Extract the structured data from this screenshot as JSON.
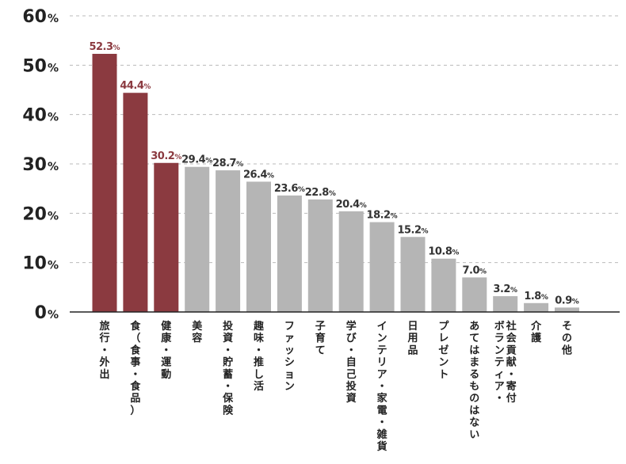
{
  "chart_data": {
    "type": "bar",
    "title": "",
    "xlabel": "",
    "ylabel": "",
    "ylim": [
      0,
      60
    ],
    "yticks": [
      0,
      10,
      20,
      30,
      40,
      50,
      60
    ],
    "ytick_labels": [
      "0%",
      "10%",
      "20%",
      "30%",
      "40%",
      "50%",
      "60%"
    ],
    "grid": true,
    "legend": "none",
    "categories": [
      "旅行・外出",
      "食（食事・食品）",
      "健康・運動",
      "美容",
      "投資・貯蓄・保険",
      "趣味・推し活",
      "ファッション",
      "子育て",
      "学び・自己投資",
      "インテリア・家電・雑貨",
      "日用品",
      "プレゼント",
      "あてはまるものはない",
      "ボランティア・社会貢献・寄付",
      "介護",
      "その他"
    ],
    "values": [
      52.3,
      44.4,
      30.2,
      29.4,
      28.7,
      26.4,
      23.6,
      22.8,
      20.4,
      18.2,
      15.2,
      10.8,
      7.0,
      3.2,
      1.8,
      0.9
    ],
    "value_labels": [
      "52.3%",
      "44.4%",
      "30.2%",
      "29.4%",
      "28.7%",
      "26.4%",
      "23.6%",
      "22.8%",
      "20.4%",
      "18.2%",
      "15.2%",
      "10.8%",
      "7.0%",
      "3.2%",
      "1.8%",
      "0.9%"
    ],
    "highlight_count": 3,
    "colors": {
      "highlight_bar": "#8b3a40",
      "highlight_label": "#8b3a40",
      "other_bar": "#b5b5b5",
      "other_label": "#333333",
      "grid": "#bbbbbb",
      "axis": "#222222"
    }
  }
}
